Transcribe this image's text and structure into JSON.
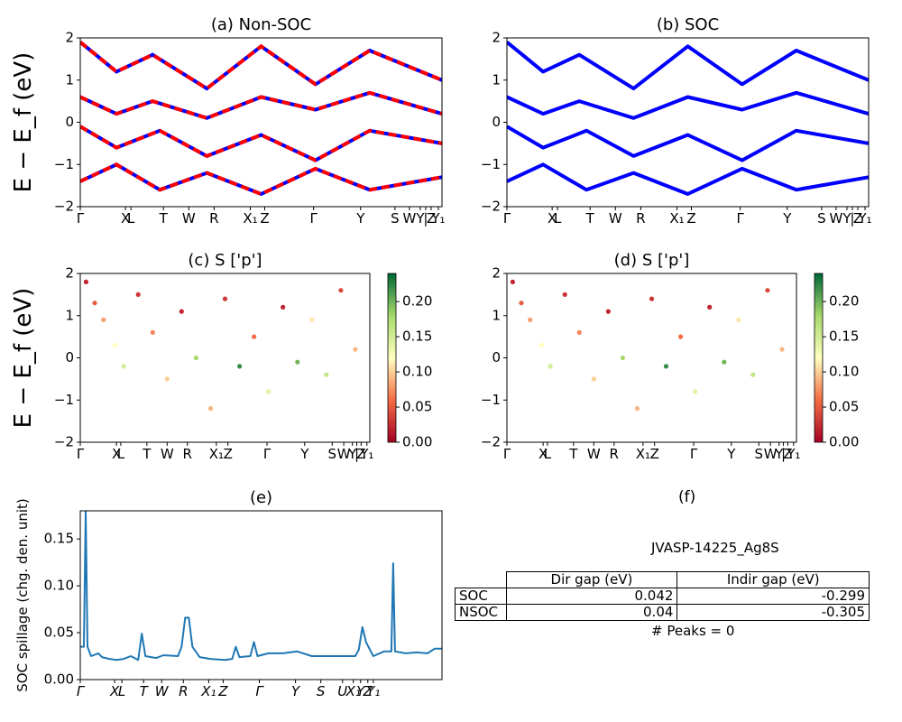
{
  "chart_data": [
    {
      "id": "a",
      "type": "line",
      "title": "(a) Non-SOC",
      "ylabel": "E − E_f (eV)",
      "ylim": [
        -2,
        2
      ],
      "yticks": [
        "−2",
        "−1",
        "0",
        "1",
        "2"
      ],
      "kpoints": [
        "Γ",
        "X",
        "L",
        "T",
        "W",
        "R",
        "X₁",
        "Z",
        "Γ",
        "Y",
        "S",
        "W",
        "Y",
        "|",
        "Z",
        "Y₁"
      ],
      "series": [
        {
          "color": "#ff0000",
          "values": [
            [
              0,
              1.9
            ],
            [
              0.1,
              1.2
            ],
            [
              0.2,
              1.6
            ],
            [
              0.35,
              0.8
            ],
            [
              0.5,
              1.8
            ],
            [
              0.65,
              0.9
            ],
            [
              0.8,
              1.7
            ],
            [
              1,
              1.0
            ]
          ]
        },
        {
          "color": "#ff0000",
          "values": [
            [
              0,
              0.6
            ],
            [
              0.1,
              0.2
            ],
            [
              0.2,
              0.5
            ],
            [
              0.35,
              0.1
            ],
            [
              0.5,
              0.6
            ],
            [
              0.65,
              0.3
            ],
            [
              0.8,
              0.7
            ],
            [
              1,
              0.2
            ]
          ]
        },
        {
          "color": "#ff0000",
          "values": [
            [
              0,
              -0.1
            ],
            [
              0.1,
              -0.6
            ],
            [
              0.22,
              -0.2
            ],
            [
              0.35,
              -0.8
            ],
            [
              0.5,
              -0.3
            ],
            [
              0.65,
              -0.9
            ],
            [
              0.8,
              -0.2
            ],
            [
              1,
              -0.5
            ]
          ]
        },
        {
          "color": "#ff0000",
          "values": [
            [
              0,
              -1.4
            ],
            [
              0.1,
              -1.0
            ],
            [
              0.22,
              -1.6
            ],
            [
              0.35,
              -1.2
            ],
            [
              0.5,
              -1.7
            ],
            [
              0.65,
              -1.1
            ],
            [
              0.8,
              -1.6
            ],
            [
              1,
              -1.3
            ]
          ]
        }
      ]
    },
    {
      "id": "b",
      "type": "line",
      "title": "(b) SOC",
      "ylim": [
        -2,
        2
      ],
      "yticks": [
        "−2",
        "−1",
        "0",
        "1",
        "2"
      ],
      "kpoints": [
        "Γ",
        "X",
        "L",
        "T",
        "W",
        "R",
        "X₁",
        "Z",
        "Γ",
        "Y",
        "S",
        "W",
        "Y",
        "|",
        "Z",
        "Y₁"
      ],
      "series": [
        {
          "color": "#0000ff",
          "values": [
            [
              0,
              1.9
            ],
            [
              0.1,
              1.2
            ],
            [
              0.2,
              1.6
            ],
            [
              0.35,
              0.8
            ],
            [
              0.5,
              1.8
            ],
            [
              0.65,
              0.9
            ],
            [
              0.8,
              1.7
            ],
            [
              1,
              1.0
            ]
          ]
        },
        {
          "color": "#0000ff",
          "values": [
            [
              0,
              0.6
            ],
            [
              0.1,
              0.2
            ],
            [
              0.2,
              0.5
            ],
            [
              0.35,
              0.1
            ],
            [
              0.5,
              0.6
            ],
            [
              0.65,
              0.3
            ],
            [
              0.8,
              0.7
            ],
            [
              1,
              0.2
            ]
          ]
        },
        {
          "color": "#0000ff",
          "values": [
            [
              0,
              -0.1
            ],
            [
              0.1,
              -0.6
            ],
            [
              0.22,
              -0.2
            ],
            [
              0.35,
              -0.8
            ],
            [
              0.5,
              -0.3
            ],
            [
              0.65,
              -0.9
            ],
            [
              0.8,
              -0.2
            ],
            [
              1,
              -0.5
            ]
          ]
        },
        {
          "color": "#0000ff",
          "values": [
            [
              0,
              -1.4
            ],
            [
              0.1,
              -1.0
            ],
            [
              0.22,
              -1.6
            ],
            [
              0.35,
              -1.2
            ],
            [
              0.5,
              -1.7
            ],
            [
              0.65,
              -1.1
            ],
            [
              0.8,
              -1.6
            ],
            [
              1,
              -1.3
            ]
          ]
        }
      ]
    },
    {
      "id": "c",
      "type": "scatter",
      "title": "(c)  S ['p']",
      "ylabel": "E − E_f (eV)",
      "ylim": [
        -2,
        2
      ],
      "yticks": [
        "−2",
        "−1",
        "0",
        "1",
        "2"
      ],
      "kpoints": [
        "Γ",
        "X",
        "L",
        "T",
        "W",
        "R",
        "X₁",
        "Z",
        "Γ",
        "Y",
        "S",
        "W",
        "Y",
        "|",
        "Z",
        "Y₁"
      ],
      "colorbar": {
        "min": 0.0,
        "max": 0.24,
        "ticks": [
          "0.00",
          "0.05",
          "0.10",
          "0.15",
          "0.20"
        ]
      },
      "points": [
        [
          0.02,
          1.8,
          0.02
        ],
        [
          0.05,
          1.3,
          0.05
        ],
        [
          0.08,
          0.9,
          0.08
        ],
        [
          0.12,
          0.3,
          0.12
        ],
        [
          0.15,
          -0.2,
          0.15
        ],
        [
          0.2,
          1.5,
          0.03
        ],
        [
          0.25,
          0.6,
          0.07
        ],
        [
          0.3,
          -0.5,
          0.1
        ],
        [
          0.35,
          1.1,
          0.02
        ],
        [
          0.4,
          0.0,
          0.18
        ],
        [
          0.45,
          -1.2,
          0.09
        ],
        [
          0.5,
          1.4,
          0.03
        ],
        [
          0.55,
          -0.2,
          0.22
        ],
        [
          0.6,
          0.5,
          0.06
        ],
        [
          0.65,
          -0.8,
          0.14
        ],
        [
          0.7,
          1.2,
          0.02
        ],
        [
          0.75,
          -0.1,
          0.2
        ],
        [
          0.8,
          0.9,
          0.11
        ],
        [
          0.85,
          -0.4,
          0.16
        ],
        [
          0.9,
          1.6,
          0.04
        ],
        [
          0.95,
          0.2,
          0.09
        ]
      ]
    },
    {
      "id": "d",
      "type": "scatter",
      "title": "(d) S ['p']",
      "ylim": [
        -2,
        2
      ],
      "yticks": [
        "−2",
        "−1",
        "0",
        "1",
        "2"
      ],
      "kpoints": [
        "Γ",
        "X",
        "L",
        "T",
        "W",
        "R",
        "X₁",
        "Z",
        "Γ",
        "Y",
        "S",
        "W",
        "Y",
        "|",
        "Z",
        "Y₁"
      ],
      "colorbar": {
        "min": 0.0,
        "max": 0.24,
        "ticks": [
          "0.00",
          "0.05",
          "0.10",
          "0.15",
          "0.20"
        ]
      },
      "points": [
        [
          0.02,
          1.8,
          0.02
        ],
        [
          0.05,
          1.3,
          0.05
        ],
        [
          0.08,
          0.9,
          0.08
        ],
        [
          0.12,
          0.3,
          0.12
        ],
        [
          0.15,
          -0.2,
          0.15
        ],
        [
          0.2,
          1.5,
          0.03
        ],
        [
          0.25,
          0.6,
          0.07
        ],
        [
          0.3,
          -0.5,
          0.1
        ],
        [
          0.35,
          1.1,
          0.02
        ],
        [
          0.4,
          0.0,
          0.18
        ],
        [
          0.45,
          -1.2,
          0.09
        ],
        [
          0.5,
          1.4,
          0.03
        ],
        [
          0.55,
          -0.2,
          0.22
        ],
        [
          0.6,
          0.5,
          0.06
        ],
        [
          0.65,
          -0.8,
          0.14
        ],
        [
          0.7,
          1.2,
          0.02
        ],
        [
          0.75,
          -0.1,
          0.2
        ],
        [
          0.8,
          0.9,
          0.11
        ],
        [
          0.85,
          -0.4,
          0.16
        ],
        [
          0.9,
          1.6,
          0.04
        ],
        [
          0.95,
          0.2,
          0.09
        ]
      ]
    },
    {
      "id": "e",
      "type": "line",
      "title": "(e)",
      "ylabel": "SOC spillage (chg. den. unit)",
      "ylim": [
        0,
        0.18
      ],
      "yticks": [
        "0.00",
        "0.05",
        "0.10",
        "0.15"
      ],
      "kpoints": [
        "Γ",
        "X",
        "L",
        "T",
        "W",
        "R",
        "X₁",
        "Z",
        "Γ",
        "Y",
        "S",
        "U",
        "X₁",
        "Y",
        "Z",
        "Y₁"
      ],
      "series": [
        {
          "color": "#1f77b4",
          "values": [
            [
              0,
              0.035
            ],
            [
              0.01,
              0.035
            ],
            [
              0.015,
              0.18
            ],
            [
              0.02,
              0.035
            ],
            [
              0.03,
              0.025
            ],
            [
              0.05,
              0.028
            ],
            [
              0.06,
              0.024
            ],
            [
              0.08,
              0.022
            ],
            [
              0.1,
              0.021
            ],
            [
              0.12,
              0.022
            ],
            [
              0.14,
              0.025
            ],
            [
              0.16,
              0.021
            ],
            [
              0.17,
              0.049
            ],
            [
              0.18,
              0.025
            ],
            [
              0.21,
              0.023
            ],
            [
              0.23,
              0.026
            ],
            [
              0.27,
              0.025
            ],
            [
              0.28,
              0.035
            ],
            [
              0.29,
              0.066
            ],
            [
              0.3,
              0.066
            ],
            [
              0.31,
              0.035
            ],
            [
              0.33,
              0.024
            ],
            [
              0.36,
              0.022
            ],
            [
              0.4,
              0.021
            ],
            [
              0.42,
              0.022
            ],
            [
              0.43,
              0.035
            ],
            [
              0.44,
              0.024
            ],
            [
              0.47,
              0.025
            ],
            [
              0.48,
              0.04
            ],
            [
              0.49,
              0.025
            ],
            [
              0.52,
              0.028
            ],
            [
              0.56,
              0.028
            ],
            [
              0.6,
              0.03
            ],
            [
              0.64,
              0.025
            ],
            [
              0.68,
              0.025
            ],
            [
              0.72,
              0.025
            ],
            [
              0.76,
              0.025
            ],
            [
              0.77,
              0.032
            ],
            [
              0.78,
              0.056
            ],
            [
              0.79,
              0.04
            ],
            [
              0.81,
              0.025
            ],
            [
              0.84,
              0.03
            ],
            [
              0.86,
              0.03
            ],
            [
              0.865,
              0.124
            ],
            [
              0.87,
              0.03
            ],
            [
              0.9,
              0.028
            ],
            [
              0.93,
              0.029
            ],
            [
              0.96,
              0.028
            ],
            [
              0.98,
              0.033
            ],
            [
              1,
              0.033
            ]
          ]
        }
      ]
    }
  ],
  "info": {
    "title": "(f)",
    "material": "JVASP-14225_Ag8S",
    "table": {
      "columns": [
        "Dir gap (eV)",
        "Indir gap (eV)"
      ],
      "rows": [
        {
          "label": "SOC",
          "dir": "0.042",
          "indir": "-0.299"
        },
        {
          "label": "NSOC",
          "dir": "0.04",
          "indir": "-0.305"
        }
      ]
    },
    "peaks": "# Peaks = 0"
  }
}
